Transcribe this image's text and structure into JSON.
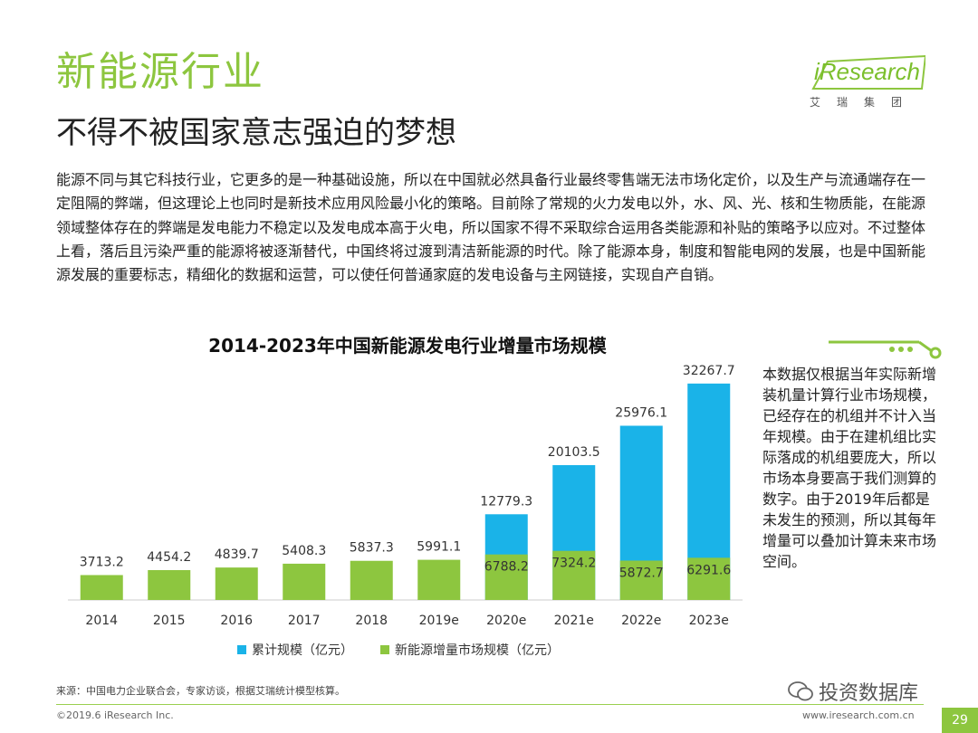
{
  "page": {
    "title": "新能源行业",
    "subtitle": "不得不被国家意志强迫的梦想",
    "intro": "能源不同与其它科技行业，它更多的是一种基础设施，所以在中国就必然具备行业最终零售端无法市场化定价，以及生产与流通端存在一定阻隔的弊端，但这理论上也同时是新技术应用风险最小化的策略。目前除了常规的火力发电以外，水、风、光、核和生物质能，在能源领域整体存在的弊端是发电能力不稳定以及发电成本高于火电，所以国家不得不采取综合运用各类能源和补贴的策略予以应对。不过整体上看，落后且污染严重的能源将被逐渐替代，中国终将过渡到清洁新能源的时代。除了能源本身，制度和智能电网的发展，也是中国新能源发展的重要标志，精细化的数据和运营，可以使任何普通家庭的发电设备与主网链接，实现自产自销。",
    "note": "本数据仅根据当年实际新增装机量计算行业市场规模，已经存在的机组并不计入当年规模。由于在建机组比实际落成的机组要庞大，所以市场本身要高于我们测算的数字。由于2019年后都是未发生的预测，所以其每年增量可以叠加计算未来市场空间。",
    "source": "来源：中国电力企业联合会，专家访谈，根据艾瑞统计模型核算。",
    "footer_left": "©2019.6 iResearch Inc.",
    "footer_right": "www.iresearch.com.cn",
    "page_number": "29",
    "watermark": "投资数据库"
  },
  "logo": {
    "wordmark": "iResearch",
    "group": "艾瑞集团"
  },
  "colors": {
    "green": "#8dc63f",
    "blue": "#1ab3e8"
  },
  "chart_data": {
    "type": "bar",
    "title": "2014-2023年中国新能源发电行业增量市场规模",
    "categories": [
      "2014",
      "2015",
      "2016",
      "2017",
      "2018",
      "2019e",
      "2020e",
      "2021e",
      "2022e",
      "2023e"
    ],
    "series": [
      {
        "name": "累计规模（亿元）",
        "color": "#1ab3e8",
        "values": [
          null,
          null,
          null,
          null,
          null,
          null,
          12779.3,
          20103.5,
          25976.1,
          32267.7
        ]
      },
      {
        "name": "新能源增量市场规模（亿元）",
        "color": "#8dc63f",
        "values": [
          3713.2,
          4454.2,
          4839.7,
          5408.3,
          5837.3,
          5991.1,
          6788.2,
          7324.2,
          5872.7,
          6291.6
        ]
      }
    ],
    "ylim": [
      0,
      34000
    ],
    "xlabel": "",
    "ylabel": "",
    "legend_position": "bottom"
  }
}
